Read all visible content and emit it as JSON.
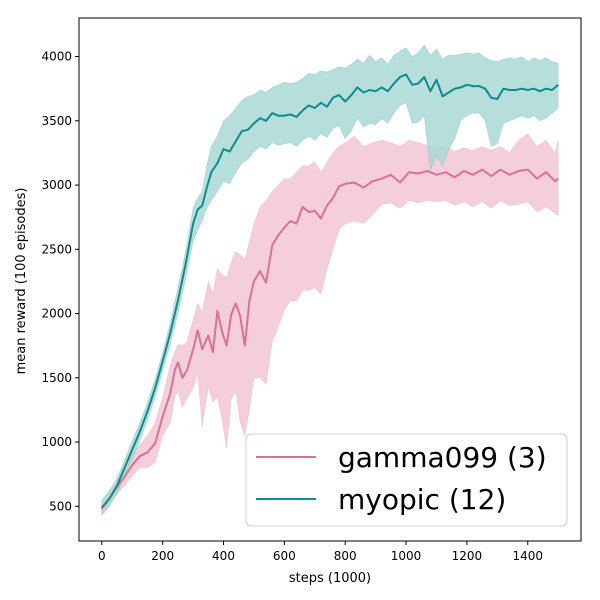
{
  "chart_data": {
    "type": "line",
    "title": "",
    "xlabel": "steps (1000)",
    "ylabel": "mean reward (100 episodes)",
    "xlim": [
      -75,
      1575
    ],
    "ylim": [
      230,
      4300
    ],
    "xticks": [
      0,
      200,
      400,
      600,
      800,
      1000,
      1200,
      1400
    ],
    "yticks": [
      500,
      1000,
      1500,
      2000,
      2500,
      3000,
      3500,
      4000
    ],
    "grid": false,
    "legend_position": "lower-right",
    "series": [
      {
        "name": "gamma099 (3)",
        "color": "#db7093",
        "band_color": "#f2c7d5",
        "x": [
          0,
          25,
          50,
          75,
          100,
          125,
          150,
          175,
          200,
          225,
          240,
          250,
          265,
          280,
          300,
          315,
          330,
          350,
          365,
          380,
          395,
          410,
          425,
          440,
          455,
          470,
          485,
          500,
          520,
          540,
          560,
          580,
          600,
          620,
          640,
          660,
          680,
          700,
          720,
          740,
          760,
          780,
          800,
          830,
          860,
          890,
          920,
          950,
          980,
          1010,
          1040,
          1070,
          1100,
          1130,
          1160,
          1190,
          1220,
          1250,
          1280,
          1310,
          1340,
          1370,
          1400,
          1430,
          1460,
          1490,
          1500
        ],
        "y": [
          480,
          560,
          650,
          730,
          820,
          890,
          920,
          990,
          1200,
          1380,
          1560,
          1620,
          1500,
          1560,
          1720,
          1870,
          1720,
          1830,
          1700,
          2020,
          1860,
          1750,
          1990,
          2080,
          1980,
          1750,
          2100,
          2250,
          2330,
          2240,
          2530,
          2610,
          2670,
          2720,
          2700,
          2830,
          2790,
          2800,
          2740,
          2840,
          2900,
          2990,
          3010,
          3020,
          2980,
          3030,
          3050,
          3080,
          3020,
          3100,
          3090,
          3110,
          3080,
          3100,
          3060,
          3110,
          3080,
          3120,
          3070,
          3120,
          3080,
          3110,
          3120,
          3050,
          3100,
          3030,
          3050
        ],
        "upper": [
          520,
          600,
          700,
          800,
          900,
          980,
          1050,
          1150,
          1350,
          1600,
          1700,
          1760,
          1750,
          1780,
          1950,
          2080,
          2010,
          2250,
          2150,
          2350,
          2300,
          2280,
          2400,
          2480,
          2460,
          2420,
          2560,
          2700,
          2830,
          2880,
          2950,
          3000,
          3050,
          3050,
          3100,
          3150,
          3150,
          3180,
          3100,
          3180,
          3250,
          3300,
          3330,
          3380,
          3300,
          3330,
          3350,
          3330,
          3300,
          3350,
          3330,
          3310,
          3280,
          3310,
          3260,
          3290,
          3270,
          3300,
          3270,
          3300,
          3250,
          3350,
          3400,
          3300,
          3350,
          3250,
          3350
        ],
        "lower": [
          440,
          520,
          600,
          660,
          740,
          800,
          800,
          840,
          1050,
          1150,
          1350,
          1400,
          1270,
          1340,
          1420,
          1540,
          1120,
          1430,
          1310,
          1350,
          1180,
          950,
          1330,
          1400,
          1150,
          1050,
          1250,
          1500,
          1500,
          1450,
          1780,
          1900,
          2030,
          2100,
          2100,
          2180,
          2180,
          2200,
          2150,
          2350,
          2500,
          2650,
          2700,
          2720,
          2700,
          2770,
          2850,
          2860,
          2820,
          2880,
          2860,
          2880,
          2870,
          2880,
          2840,
          2870,
          2830,
          2870,
          2820,
          2880,
          2840,
          2850,
          2870,
          2790,
          2830,
          2780,
          2760
        ]
      },
      {
        "name": "myopic (12)",
        "color": "#0e8c8c",
        "band_color": "#a9d9d6",
        "x": [
          0,
          25,
          50,
          75,
          100,
          125,
          150,
          175,
          200,
          225,
          250,
          275,
          300,
          315,
          330,
          345,
          360,
          380,
          400,
          420,
          440,
          460,
          480,
          500,
          520,
          540,
          560,
          580,
          600,
          620,
          640,
          660,
          680,
          700,
          720,
          740,
          760,
          780,
          800,
          820,
          840,
          860,
          880,
          900,
          920,
          940,
          960,
          980,
          1000,
          1020,
          1040,
          1060,
          1080,
          1100,
          1120,
          1140,
          1160,
          1180,
          1200,
          1220,
          1240,
          1260,
          1280,
          1300,
          1320,
          1340,
          1360,
          1380,
          1400,
          1420,
          1440,
          1460,
          1480,
          1500
        ],
        "y": [
          490,
          560,
          660,
          800,
          940,
          1080,
          1240,
          1420,
          1630,
          1850,
          2100,
          2380,
          2700,
          2810,
          2840,
          2980,
          3100,
          3170,
          3280,
          3260,
          3340,
          3420,
          3430,
          3480,
          3520,
          3500,
          3560,
          3540,
          3540,
          3550,
          3530,
          3580,
          3620,
          3600,
          3640,
          3610,
          3680,
          3700,
          3650,
          3700,
          3760,
          3720,
          3740,
          3730,
          3760,
          3730,
          3790,
          3840,
          3860,
          3780,
          3790,
          3840,
          3730,
          3820,
          3690,
          3720,
          3750,
          3760,
          3780,
          3770,
          3770,
          3750,
          3680,
          3670,
          3750,
          3740,
          3740,
          3750,
          3740,
          3750,
          3730,
          3750,
          3740,
          3780
        ],
        "upper": [
          550,
          620,
          720,
          860,
          1010,
          1150,
          1310,
          1490,
          1700,
          1930,
          2200,
          2480,
          2820,
          2900,
          2950,
          3150,
          3300,
          3380,
          3500,
          3540,
          3600,
          3660,
          3690,
          3700,
          3740,
          3720,
          3760,
          3780,
          3800,
          3790,
          3800,
          3830,
          3870,
          3860,
          3890,
          3880,
          3900,
          3920,
          3910,
          3940,
          3980,
          3950,
          4010,
          3960,
          3990,
          3940,
          4010,
          4040,
          4070,
          4000,
          4030,
          4090,
          4010,
          4060,
          3980,
          4010,
          4010,
          4020,
          4030,
          4020,
          4030,
          3990,
          3970,
          3960,
          3980,
          3990,
          3980,
          4000,
          3960,
          3990,
          3970,
          3990,
          3960,
          3950
        ],
        "lower": [
          430,
          500,
          600,
          740,
          870,
          1010,
          1170,
          1350,
          1560,
          1760,
          2000,
          2270,
          2560,
          2650,
          2720,
          2820,
          2880,
          2950,
          3030,
          3010,
          3100,
          3170,
          3200,
          3260,
          3300,
          3280,
          3330,
          3310,
          3320,
          3330,
          3300,
          3350,
          3380,
          3350,
          3400,
          3370,
          3440,
          3460,
          3360,
          3420,
          3520,
          3450,
          3480,
          3470,
          3520,
          3480,
          3560,
          3620,
          3640,
          3480,
          3490,
          3540,
          3120,
          3230,
          3150,
          3280,
          3360,
          3500,
          3540,
          3560,
          3560,
          3500,
          3300,
          3320,
          3480,
          3500,
          3520,
          3540,
          3520,
          3540,
          3500,
          3520,
          3560,
          3600
        ]
      }
    ]
  }
}
